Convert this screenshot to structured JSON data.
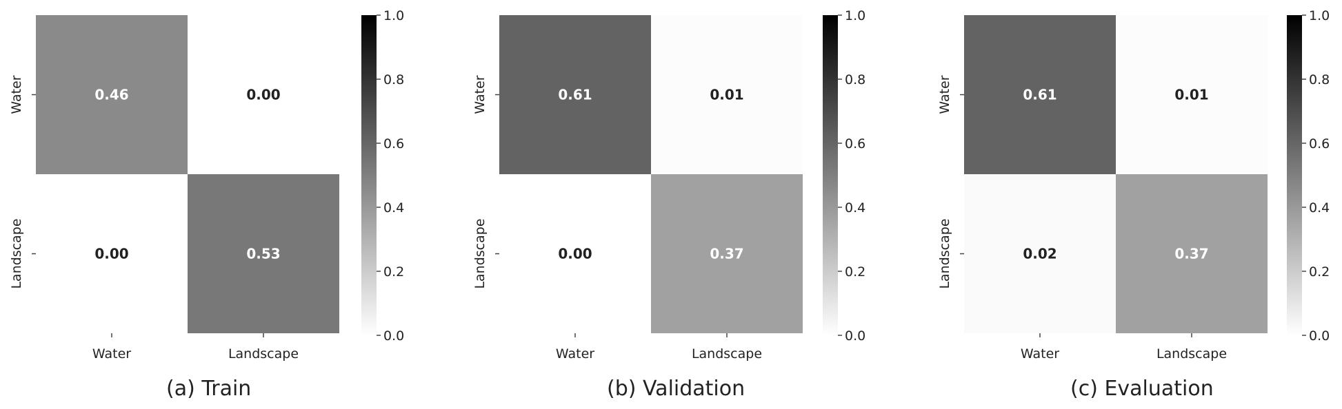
{
  "chart_data": [
    {
      "type": "heatmap",
      "caption": "(a) Train",
      "rows": [
        "Water",
        "Landscape"
      ],
      "columns": [
        "Water",
        "Landscape"
      ],
      "values": [
        [
          0.46,
          0.0
        ],
        [
          0.0,
          0.53
        ]
      ],
      "value_labels": [
        [
          "0.46",
          "0.00"
        ],
        [
          "0.00",
          "0.53"
        ]
      ],
      "colorbar": {
        "range": [
          0.0,
          1.0
        ],
        "ticks": [
          "0.0",
          "0.2",
          "0.4",
          "0.6",
          "0.8",
          "1.0"
        ],
        "colormap": "greys"
      },
      "grid": false
    },
    {
      "type": "heatmap",
      "caption": "(b) Validation",
      "rows": [
        "Water",
        "Landscape"
      ],
      "columns": [
        "Water",
        "Landscape"
      ],
      "values": [
        [
          0.61,
          0.01
        ],
        [
          0.0,
          0.37
        ]
      ],
      "value_labels": [
        [
          "0.61",
          "0.01"
        ],
        [
          "0.00",
          "0.37"
        ]
      ],
      "colorbar": {
        "range": [
          0.0,
          1.0
        ],
        "ticks": [
          "0.0",
          "0.2",
          "0.4",
          "0.6",
          "0.8",
          "1.0"
        ],
        "colormap": "greys"
      },
      "grid": false
    },
    {
      "type": "heatmap",
      "caption": "(c) Evaluation",
      "rows": [
        "Water",
        "Landscape"
      ],
      "columns": [
        "Water",
        "Landscape"
      ],
      "values": [
        [
          0.61,
          0.01
        ],
        [
          0.02,
          0.37
        ]
      ],
      "value_labels": [
        [
          "0.61",
          "0.01"
        ],
        [
          "0.02",
          "0.37"
        ]
      ],
      "colorbar": {
        "range": [
          0.0,
          1.0
        ],
        "ticks": [
          "0.0",
          "0.2",
          "0.4",
          "0.6",
          "0.8",
          "1.0"
        ],
        "colormap": "greys"
      },
      "grid": false
    }
  ],
  "colors": {
    "text_dark": "#222222",
    "text_light": "#ffffff",
    "tick": "#444444",
    "background": "#ffffff"
  }
}
